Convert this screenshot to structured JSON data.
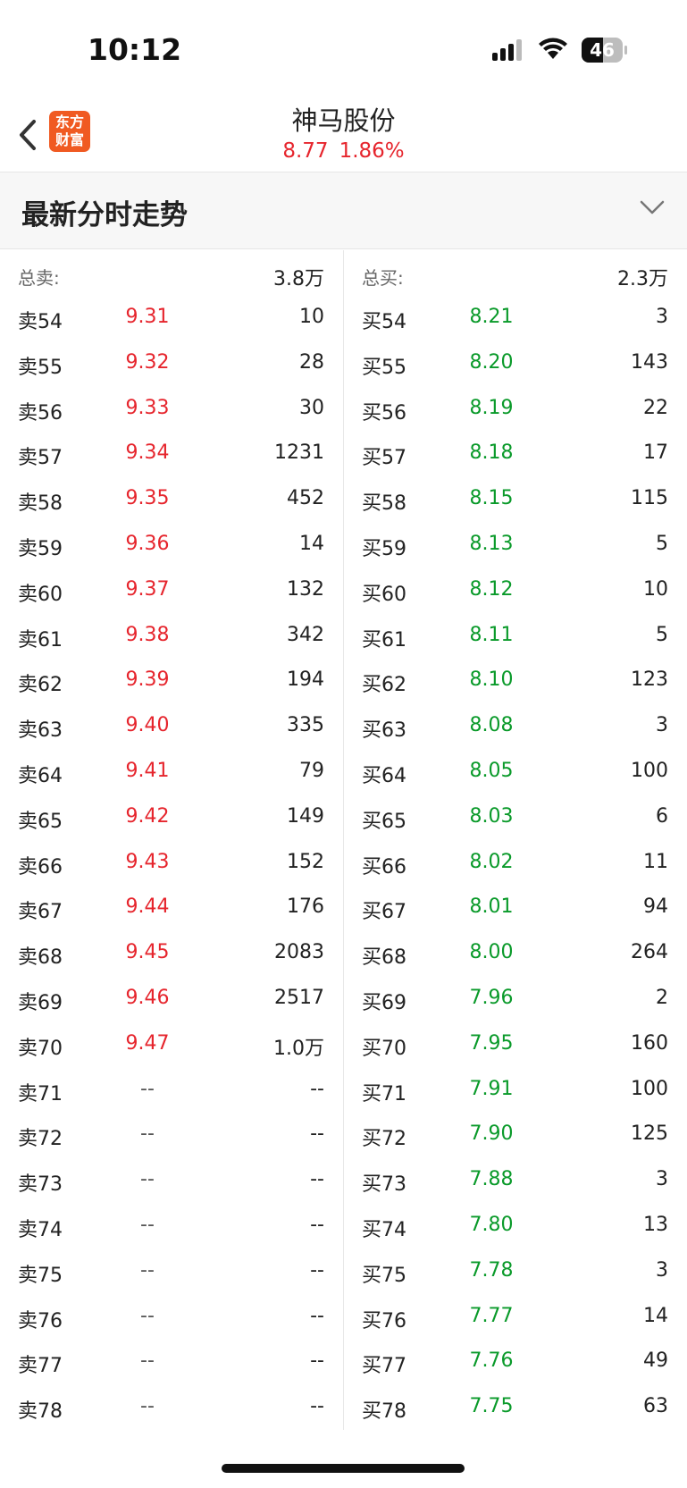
{
  "status_bar": {
    "time": "10:12",
    "battery": "46"
  },
  "header": {
    "stock_name": "神马股份",
    "price": "8.77",
    "change_pct": "1.86%",
    "logo_line1": "东方",
    "logo_line2": "财富"
  },
  "section": {
    "title": "最新分时走势"
  },
  "colors": {
    "up": "#e6252d",
    "down": "#0a9a2a",
    "brand": "#f05a22"
  },
  "sell": {
    "total_label": "总卖:",
    "total_value": "3.8万",
    "rows": [
      {
        "label": "卖54",
        "price": "9.31",
        "volume": "10"
      },
      {
        "label": "卖55",
        "price": "9.32",
        "volume": "28"
      },
      {
        "label": "卖56",
        "price": "9.33",
        "volume": "30"
      },
      {
        "label": "卖57",
        "price": "9.34",
        "volume": "1231"
      },
      {
        "label": "卖58",
        "price": "9.35",
        "volume": "452"
      },
      {
        "label": "卖59",
        "price": "9.36",
        "volume": "14"
      },
      {
        "label": "卖60",
        "price": "9.37",
        "volume": "132"
      },
      {
        "label": "卖61",
        "price": "9.38",
        "volume": "342"
      },
      {
        "label": "卖62",
        "price": "9.39",
        "volume": "194"
      },
      {
        "label": "卖63",
        "price": "9.40",
        "volume": "335"
      },
      {
        "label": "卖64",
        "price": "9.41",
        "volume": "79"
      },
      {
        "label": "卖65",
        "price": "9.42",
        "volume": "149"
      },
      {
        "label": "卖66",
        "price": "9.43",
        "volume": "152"
      },
      {
        "label": "卖67",
        "price": "9.44",
        "volume": "176"
      },
      {
        "label": "卖68",
        "price": "9.45",
        "volume": "2083"
      },
      {
        "label": "卖69",
        "price": "9.46",
        "volume": "2517"
      },
      {
        "label": "卖70",
        "price": "9.47",
        "volume": "1.0万"
      },
      {
        "label": "卖71",
        "price": "--",
        "volume": "--"
      },
      {
        "label": "卖72",
        "price": "--",
        "volume": "--"
      },
      {
        "label": "卖73",
        "price": "--",
        "volume": "--"
      },
      {
        "label": "卖74",
        "price": "--",
        "volume": "--"
      },
      {
        "label": "卖75",
        "price": "--",
        "volume": "--"
      },
      {
        "label": "卖76",
        "price": "--",
        "volume": "--"
      },
      {
        "label": "卖77",
        "price": "--",
        "volume": "--"
      },
      {
        "label": "卖78",
        "price": "--",
        "volume": "--"
      }
    ]
  },
  "buy": {
    "total_label": "总买:",
    "total_value": "2.3万",
    "rows": [
      {
        "label": "买54",
        "price": "8.21",
        "volume": "3"
      },
      {
        "label": "买55",
        "price": "8.20",
        "volume": "143"
      },
      {
        "label": "买56",
        "price": "8.19",
        "volume": "22"
      },
      {
        "label": "买57",
        "price": "8.18",
        "volume": "17"
      },
      {
        "label": "买58",
        "price": "8.15",
        "volume": "115"
      },
      {
        "label": "买59",
        "price": "8.13",
        "volume": "5"
      },
      {
        "label": "买60",
        "price": "8.12",
        "volume": "10"
      },
      {
        "label": "买61",
        "price": "8.11",
        "volume": "5"
      },
      {
        "label": "买62",
        "price": "8.10",
        "volume": "123"
      },
      {
        "label": "买63",
        "price": "8.08",
        "volume": "3"
      },
      {
        "label": "买64",
        "price": "8.05",
        "volume": "100"
      },
      {
        "label": "买65",
        "price": "8.03",
        "volume": "6"
      },
      {
        "label": "买66",
        "price": "8.02",
        "volume": "11"
      },
      {
        "label": "买67",
        "price": "8.01",
        "volume": "94"
      },
      {
        "label": "买68",
        "price": "8.00",
        "volume": "264"
      },
      {
        "label": "买69",
        "price": "7.96",
        "volume": "2"
      },
      {
        "label": "买70",
        "price": "7.95",
        "volume": "160"
      },
      {
        "label": "买71",
        "price": "7.91",
        "volume": "100"
      },
      {
        "label": "买72",
        "price": "7.90",
        "volume": "125"
      },
      {
        "label": "买73",
        "price": "7.88",
        "volume": "3"
      },
      {
        "label": "买74",
        "price": "7.80",
        "volume": "13"
      },
      {
        "label": "买75",
        "price": "7.78",
        "volume": "3"
      },
      {
        "label": "买76",
        "price": "7.77",
        "volume": "14"
      },
      {
        "label": "买77",
        "price": "7.76",
        "volume": "49"
      },
      {
        "label": "买78",
        "price": "7.75",
        "volume": "63"
      }
    ]
  }
}
